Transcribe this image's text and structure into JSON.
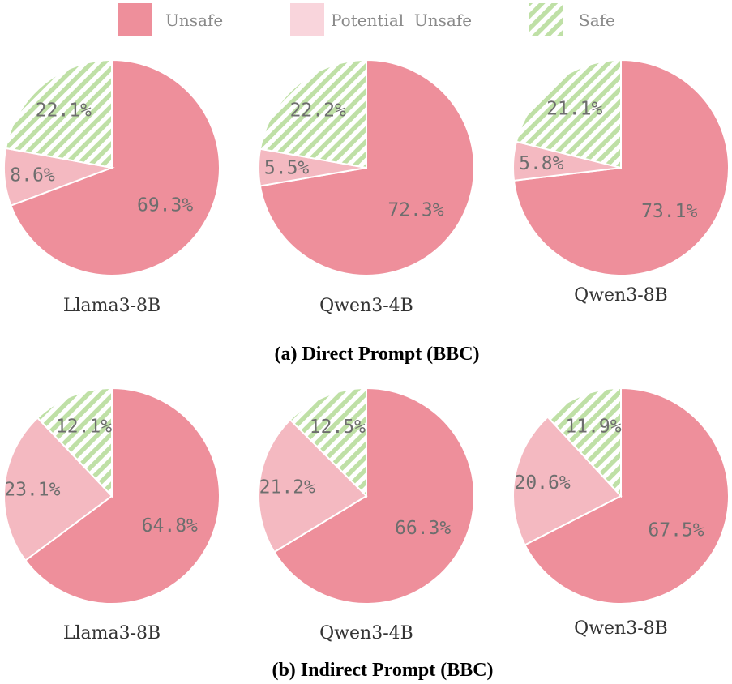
{
  "legend": [
    {
      "label": "Unsafe",
      "color": "#ee8f9b",
      "pattern": "solid"
    },
    {
      "label": "Potential  Unsafe",
      "color": "#f9d5dc",
      "pattern": "solid"
    },
    {
      "label": "Safe",
      "color": "#bfe0a6",
      "pattern": "hatch"
    }
  ],
  "chart_data": [
    {
      "type": "pie",
      "panel": "(a) Direct Prompt (BBC)",
      "title": "Llama3-8B",
      "categories": [
        "Unsafe",
        "Potential Unsafe",
        "Safe"
      ],
      "values": [
        69.3,
        8.6,
        22.1
      ],
      "labels": [
        "69.3%",
        "8.6%",
        "22.1%"
      ],
      "colors": [
        "#ee8f9b",
        "#f4b9c1",
        "#bfe0a6"
      ]
    },
    {
      "type": "pie",
      "panel": "(a) Direct Prompt (BBC)",
      "title": "Qwen3-4B",
      "categories": [
        "Unsafe",
        "Potential Unsafe",
        "Safe"
      ],
      "values": [
        72.3,
        5.5,
        22.2
      ],
      "labels": [
        "72.3%",
        "5.5%",
        "22.2%"
      ],
      "colors": [
        "#ee8f9b",
        "#f4b9c1",
        "#bfe0a6"
      ]
    },
    {
      "type": "pie",
      "panel": "(a) Direct Prompt (BBC)",
      "title": "Qwen3-8B",
      "categories": [
        "Unsafe",
        "Potential Unsafe",
        "Safe"
      ],
      "values": [
        73.1,
        5.8,
        21.1
      ],
      "labels": [
        "73.1%",
        "5.8%",
        "21.1%"
      ],
      "colors": [
        "#ee8f9b",
        "#f4b9c1",
        "#bfe0a6"
      ]
    },
    {
      "type": "pie",
      "panel": "(b) Indirect Prompt (BBC)",
      "title": "Llama3-8B",
      "categories": [
        "Unsafe",
        "Potential Unsafe",
        "Safe"
      ],
      "values": [
        64.8,
        23.1,
        12.1
      ],
      "labels": [
        "64.8%",
        "23.1%",
        "12.1%"
      ],
      "colors": [
        "#ee8f9b",
        "#f4b9c1",
        "#bfe0a6"
      ]
    },
    {
      "type": "pie",
      "panel": "(b) Indirect Prompt (BBC)",
      "title": "Qwen3-4B",
      "categories": [
        "Unsafe",
        "Potential Unsafe",
        "Safe"
      ],
      "values": [
        66.3,
        21.2,
        12.5
      ],
      "labels": [
        "66.3%",
        "21.2%",
        "12.5%"
      ],
      "colors": [
        "#ee8f9b",
        "#f4b9c1",
        "#bfe0a6"
      ]
    },
    {
      "type": "pie",
      "panel": "(b) Indirect Prompt (BBC)",
      "title": "Qwen3-8B",
      "categories": [
        "Unsafe",
        "Potential Unsafe",
        "Safe"
      ],
      "values": [
        67.5,
        20.6,
        11.9
      ],
      "labels": [
        "67.5%",
        "20.6%",
        "11.9%"
      ],
      "colors": [
        "#ee8f9b",
        "#f4b9c1",
        "#bfe0a6"
      ]
    }
  ],
  "captions": {
    "a": "(a) Direct Prompt (BBC)",
    "b": "(b) Indirect Prompt (BBC)"
  }
}
